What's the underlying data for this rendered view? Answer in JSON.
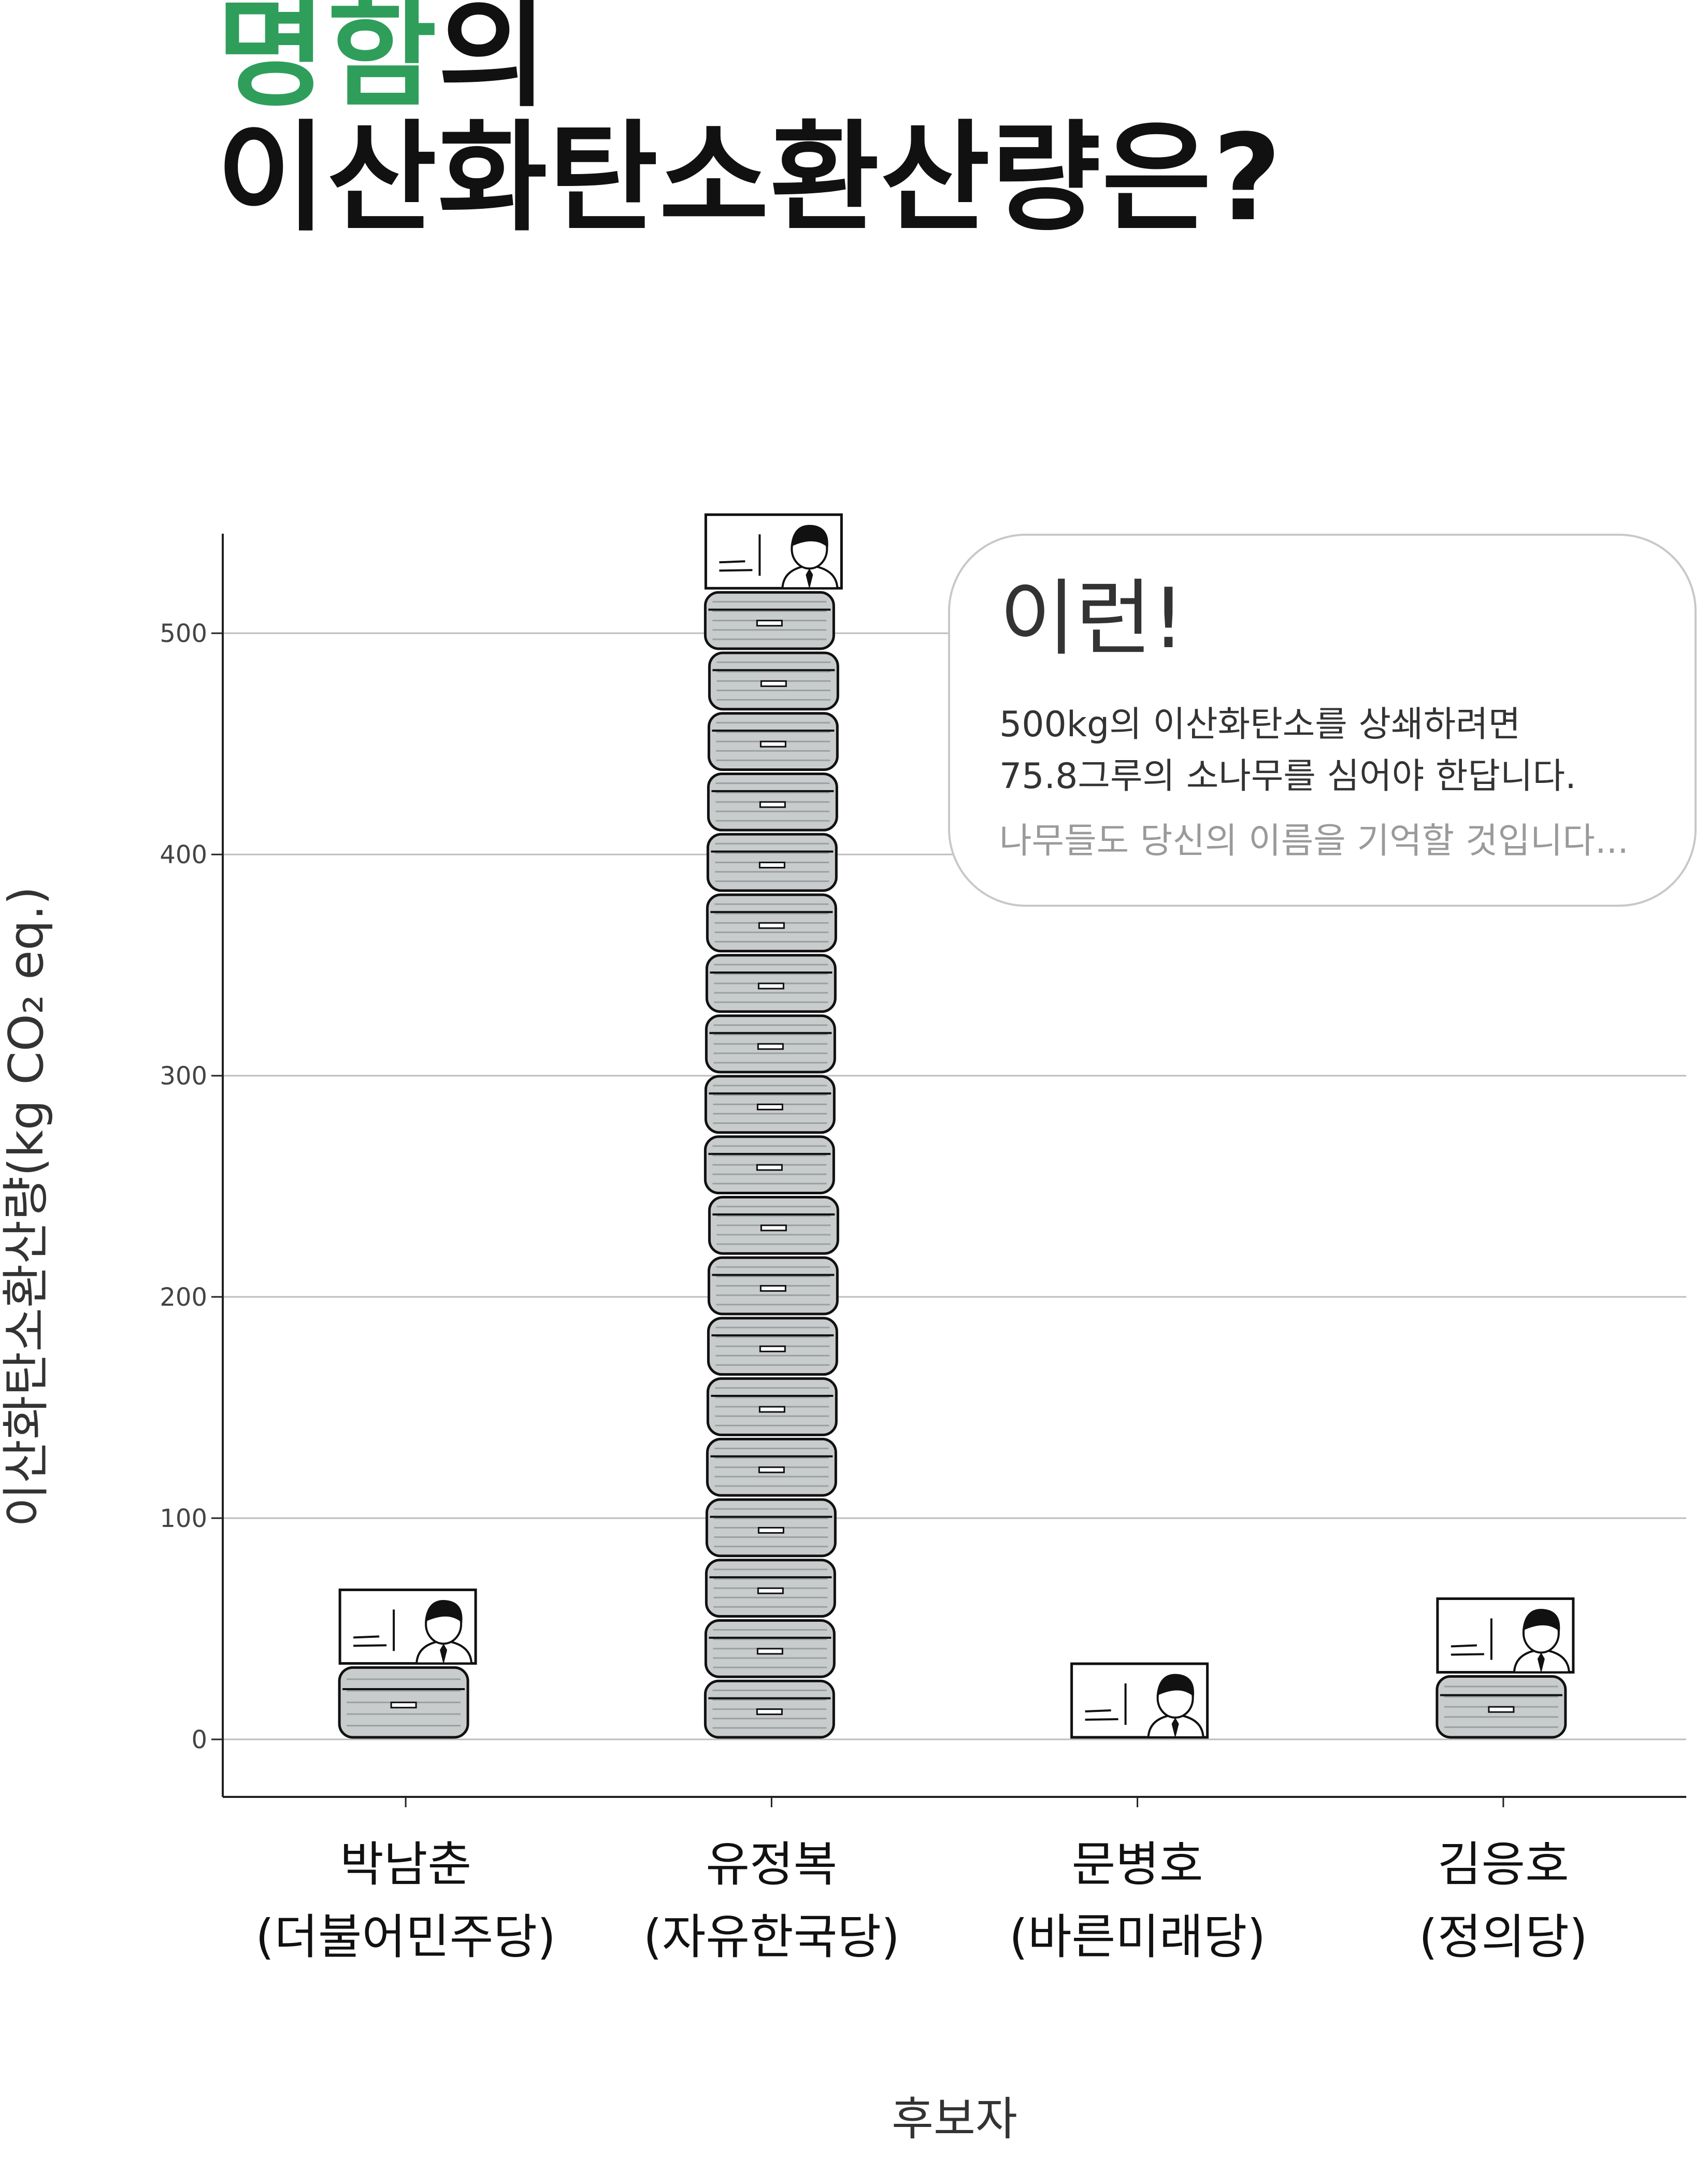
{
  "header": {
    "title_highlight": "명함",
    "title_rest": "의",
    "title_line2": "이산화탄소환산량은?"
  },
  "bubble": {
    "heading": "이런!",
    "line1": "500kg의 이산화탄소를 상쇄하려면",
    "line2": "75.8그루의 소나무를 심어야 한답니다.",
    "line3": "나무들도 당신의 이름을 기억할 것입니다..."
  },
  "colors": {
    "highlight": "#2f9e5b",
    "grid": "#bdbdbd",
    "axis": "#222222",
    "box_fill": "#c9cccc"
  },
  "chart_data": {
    "type": "bar",
    "title": "",
    "xlabel": "후보자",
    "ylabel": "이산화탄소환산량(kg CO₂ eq.)",
    "ylim": [
      -26,
      545
    ],
    "yticks": [
      0,
      100,
      200,
      300,
      400,
      500
    ],
    "categories": [
      {
        "name": "박남춘",
        "party": "(더불어민주당)"
      },
      {
        "name": "유정복",
        "party": "(자유한국당)"
      },
      {
        "name": "문병호",
        "party": "(바른미래당)"
      },
      {
        "name": "김응호",
        "party": "(정의당)"
      }
    ],
    "values": [
      69,
      555,
      42,
      65
    ],
    "grid": "horizontal",
    "marks": "stacked box icons with a business-card icon on top"
  }
}
